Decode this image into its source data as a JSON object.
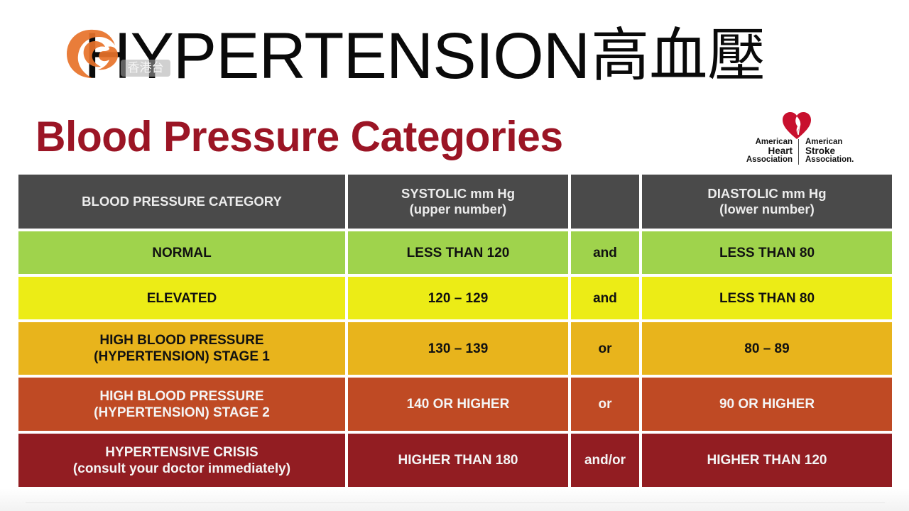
{
  "headline": {
    "english": "HYPERTENSION",
    "chinese": "高血壓"
  },
  "station_logo": {
    "tag": "香港台",
    "color": "#e8722a"
  },
  "chart_title": "Blood Pressure Categories",
  "aha_logo": {
    "left_line1": "American",
    "left_line2": "Heart",
    "left_line3": "Association",
    "right_line1": "American",
    "right_line2": "Stroke",
    "right_line3": "Association.",
    "color": "#c8102e"
  },
  "table": {
    "headers": {
      "category": "BLOOD PRESSURE CATEGORY",
      "systolic_line1": "SYSTOLIC mm Hg",
      "systolic_line2": "(upper number)",
      "connector": "",
      "diastolic_line1": "DIASTOLIC mm Hg",
      "diastolic_line2": "(lower number)"
    },
    "rows": [
      {
        "category_line1": "NORMAL",
        "category_line2": "",
        "systolic": "LESS THAN 120",
        "connector": "and",
        "diastolic": "LESS THAN 80",
        "color": "#9fd34c"
      },
      {
        "category_line1": "ELEVATED",
        "category_line2": "",
        "systolic": "120 – 129",
        "connector": "and",
        "diastolic": "LESS THAN 80",
        "color": "#ecec16"
      },
      {
        "category_line1": "HIGH BLOOD PRESSURE",
        "category_line2": "(HYPERTENSION) STAGE 1",
        "systolic": "130 – 139",
        "connector": "or",
        "diastolic": "80 – 89",
        "color": "#e8b41c"
      },
      {
        "category_line1": "HIGH BLOOD PRESSURE",
        "category_line2": "(HYPERTENSION) STAGE 2",
        "systolic": "140 OR HIGHER",
        "connector": "or",
        "diastolic": "90 OR HIGHER",
        "color": "#bf4a24"
      },
      {
        "category_line1": "HYPERTENSIVE CRISIS",
        "category_line2": "(consult your doctor immediately)",
        "systolic": "HIGHER THAN 180",
        "connector": "and/or",
        "diastolic": "HIGHER THAN 120",
        "color": "#921d22"
      }
    ]
  }
}
